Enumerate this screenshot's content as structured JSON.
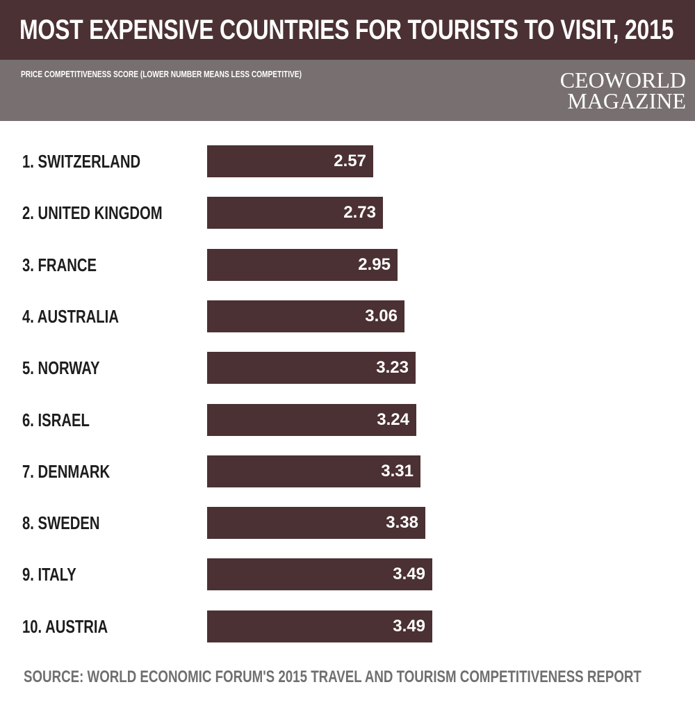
{
  "header": {
    "title": "MOST EXPENSIVE COUNTRIES FOR TOURISTS TO VISIT, 2015",
    "subtitle": "PRICE COMPETITIVENESS SCORE (LOWER NUMBER MEANS LESS COMPETITIVE)",
    "brand_line1": "CEOWORLD",
    "brand_line2": "MAGAZINE"
  },
  "colors": {
    "title_band": "#4b3133",
    "subtitle_band": "#787070",
    "bar": "#4b3133",
    "source_text": "#6f6f6f"
  },
  "chart_data": {
    "type": "bar",
    "orientation": "horizontal",
    "title": "MOST EXPENSIVE COUNTRIES FOR TOURISTS TO VISIT, 2015",
    "subtitle": "PRICE COMPETITIVENESS SCORE (LOWER NUMBER MEANS LESS COMPETITIVE)",
    "categories": [
      "1. SWITZERLAND",
      "2. UNITED KINGDOM",
      "3. FRANCE",
      "4. AUSTRALIA",
      "5. NORWAY",
      "6. ISRAEL",
      "7. DENMARK",
      "8. SWEDEN",
      "9. ITALY",
      "10. AUSTRIA"
    ],
    "values": [
      2.57,
      2.73,
      2.95,
      3.06,
      3.23,
      3.24,
      3.31,
      3.38,
      3.49,
      3.49
    ],
    "value_labels": [
      "2.57",
      "2.73",
      "2.95",
      "3.06",
      "3.23",
      "3.24",
      "3.31",
      "3.38",
      "3.49",
      "3.49"
    ],
    "xlim": [
      0,
      3.49
    ],
    "grid": false,
    "legend": "none"
  },
  "footer": {
    "source": "SOURCE: WORLD ECONOMIC FORUM'S 2015 TRAVEL AND TOURISM COMPETITIVENESS REPORT"
  }
}
